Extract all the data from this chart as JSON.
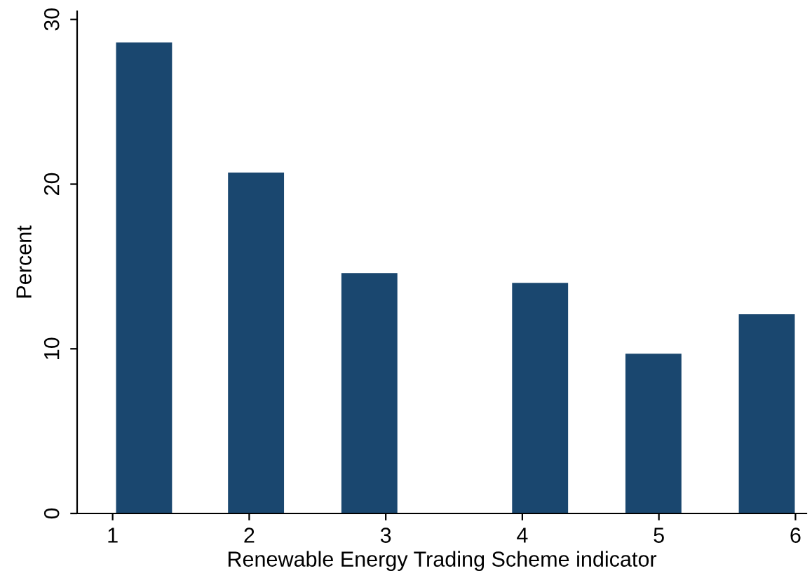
{
  "chart_data": {
    "type": "bar",
    "xlabel": "Renewable Energy Trading Scheme indicator",
    "ylabel": "Percent",
    "x": [
      1.23,
      2.05,
      2.88,
      4.13,
      4.96,
      5.79
    ],
    "values": [
      28.6,
      20.7,
      14.6,
      14.0,
      9.7,
      12.1
    ],
    "color": "#1a476f",
    "xlim": [
      0.74,
      6.08
    ],
    "xticks": [
      1,
      2,
      3,
      4,
      5,
      6
    ],
    "ylim": [
      0,
      30.5
    ],
    "yticks": [
      0,
      10,
      20,
      30
    ],
    "grid": false
  }
}
